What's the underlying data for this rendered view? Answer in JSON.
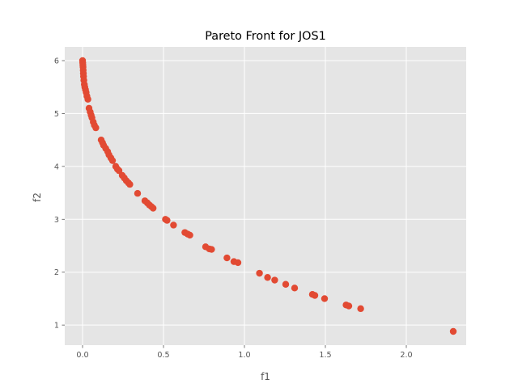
{
  "chart_data": {
    "type": "scatter",
    "title": "Pareto Front for JOS1",
    "xlabel": "f1",
    "ylabel": "f2",
    "xlim": [
      -0.11,
      2.37
    ],
    "ylim": [
      0.62,
      6.26
    ],
    "x_ticks": [
      0.0,
      0.5,
      1.0,
      1.5,
      2.0
    ],
    "x_tick_labels": [
      "0.0",
      "0.5",
      "1.0",
      "1.5",
      "2.0"
    ],
    "y_ticks": [
      1,
      2,
      3,
      4,
      5,
      6
    ],
    "y_tick_labels": [
      "1",
      "2",
      "3",
      "4",
      "5",
      "6"
    ],
    "grid": true,
    "style": "ggplot",
    "colors": {
      "background": "#E5E5E5",
      "grid": "#FFFFFF",
      "point": "#E24A33"
    },
    "points": [
      [
        0.0,
        6.0
      ],
      [
        0.001,
        5.96
      ],
      [
        0.002,
        5.92
      ],
      [
        0.003,
        5.88
      ],
      [
        0.004,
        5.82
      ],
      [
        0.005,
        5.76
      ],
      [
        0.006,
        5.7
      ],
      [
        0.008,
        5.63
      ],
      [
        0.011,
        5.55
      ],
      [
        0.014,
        5.5
      ],
      [
        0.018,
        5.45
      ],
      [
        0.022,
        5.4
      ],
      [
        0.027,
        5.33
      ],
      [
        0.033,
        5.27
      ],
      [
        0.04,
        5.1
      ],
      [
        0.047,
        5.03
      ],
      [
        0.053,
        4.97
      ],
      [
        0.058,
        4.92
      ],
      [
        0.066,
        4.84
      ],
      [
        0.073,
        4.78
      ],
      [
        0.082,
        4.73
      ],
      [
        0.115,
        4.5
      ],
      [
        0.123,
        4.45
      ],
      [
        0.13,
        4.4
      ],
      [
        0.143,
        4.34
      ],
      [
        0.155,
        4.28
      ],
      [
        0.163,
        4.22
      ],
      [
        0.175,
        4.16
      ],
      [
        0.185,
        4.11
      ],
      [
        0.205,
        4.0
      ],
      [
        0.215,
        3.95
      ],
      [
        0.225,
        3.92
      ],
      [
        0.245,
        3.83
      ],
      [
        0.258,
        3.78
      ],
      [
        0.27,
        3.73
      ],
      [
        0.283,
        3.69
      ],
      [
        0.292,
        3.66
      ],
      [
        0.34,
        3.49
      ],
      [
        0.385,
        3.35
      ],
      [
        0.4,
        3.31
      ],
      [
        0.413,
        3.27
      ],
      [
        0.425,
        3.24
      ],
      [
        0.436,
        3.21
      ],
      [
        0.512,
        3.0
      ],
      [
        0.522,
        2.98
      ],
      [
        0.562,
        2.89
      ],
      [
        0.632,
        2.75
      ],
      [
        0.65,
        2.72
      ],
      [
        0.663,
        2.7
      ],
      [
        0.76,
        2.48
      ],
      [
        0.783,
        2.44
      ],
      [
        0.797,
        2.43
      ],
      [
        0.892,
        2.27
      ],
      [
        0.935,
        2.2
      ],
      [
        0.96,
        2.18
      ],
      [
        1.093,
        1.98
      ],
      [
        1.143,
        1.9
      ],
      [
        1.187,
        1.85
      ],
      [
        1.255,
        1.77
      ],
      [
        1.31,
        1.7
      ],
      [
        1.42,
        1.58
      ],
      [
        1.435,
        1.56
      ],
      [
        1.495,
        1.5
      ],
      [
        1.628,
        1.38
      ],
      [
        1.645,
        1.36
      ],
      [
        1.718,
        1.31
      ],
      [
        2.29,
        0.88
      ]
    ]
  }
}
